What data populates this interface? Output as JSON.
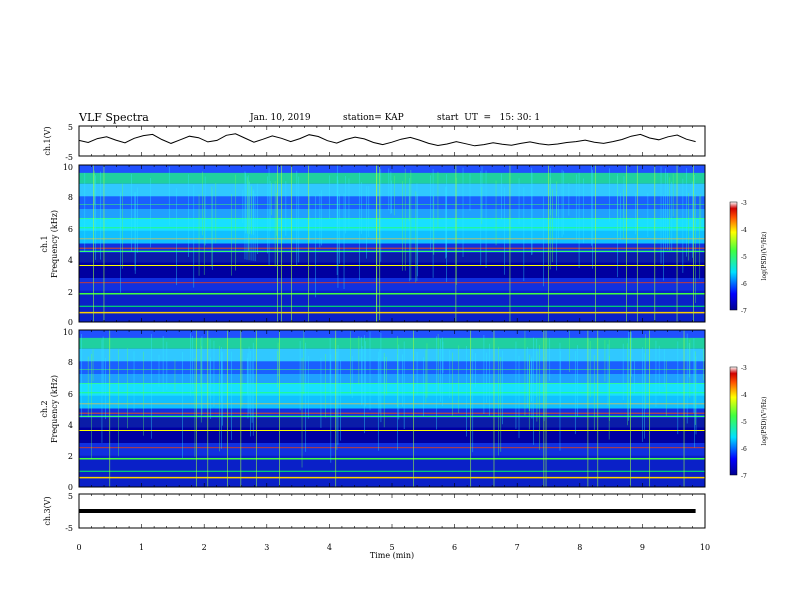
{
  "header": {
    "title": "VLF Spectra",
    "date": "Jan. 10, 2019",
    "station": "station= KAP",
    "start": "start  UT  =   15: 30: 1"
  },
  "chart_data": [
    {
      "type": "line",
      "ylabel": "ch.1(V)",
      "ylim": [
        -5,
        5
      ],
      "yticks": [
        "5",
        "-5"
      ],
      "xlim": [
        0,
        10
      ],
      "series": [
        {
          "values": [
            0.2,
            -0.5,
            0.8,
            1.4,
            0.3,
            -0.6,
            0.9,
            1.8,
            2.2,
            0.5,
            -0.8,
            0.4,
            1.6,
            1.1,
            -0.3,
            0.2,
            1.9,
            2.4,
            1.0,
            -0.4,
            0.6,
            1.7,
            0.9,
            -0.2,
            0.8,
            2.1,
            1.5,
            0.1,
            -0.7,
            0.5,
            1.3,
            0.7,
            -0.5,
            -1.2,
            -0.4,
            0.6,
            1.2,
            0.3,
            -0.8,
            -1.5,
            -1.0,
            -0.2,
            -0.9,
            -1.6,
            -1.2,
            -0.6,
            -1.1,
            -1.4,
            -0.8,
            -0.3,
            -0.9,
            -1.3,
            -1.0,
            -0.5,
            -0.2,
            0.3,
            -0.4,
            -0.8,
            -0.2,
            0.5,
            1.6,
            2.2,
            1.0,
            0.4,
            1.4,
            2.0,
            0.6,
            -0.2
          ]
        }
      ]
    },
    {
      "type": "heatmap",
      "ylabel": "ch.1",
      "ylabel2": "Frequency (kHz)",
      "ylim": [
        0,
        10
      ],
      "yticks": [
        "0",
        "2",
        "4",
        "6",
        "8",
        "10"
      ],
      "xlim": [
        0,
        10
      ],
      "colorbar": {
        "label": "log(PSD)(V²/Hz)",
        "ticks": [
          "-3",
          "-4",
          "-5",
          "-6",
          "-7"
        ]
      }
    },
    {
      "type": "heatmap",
      "ylabel": "ch.2",
      "ylabel2": "Frequency (kHz)",
      "ylim": [
        0,
        10
      ],
      "yticks": [
        "0",
        "2",
        "4",
        "6",
        "8",
        "10"
      ],
      "xlim": [
        0,
        10
      ],
      "colorbar": {
        "label": "log(PSD)(V²/Hz)",
        "ticks": [
          "-3",
          "-4",
          "-5",
          "-6",
          "-7"
        ]
      }
    },
    {
      "type": "line",
      "ylabel": "ch.3(V)",
      "ylim": [
        -5,
        5
      ],
      "yticks": [
        "5",
        "-5"
      ],
      "xlim": [
        0,
        10
      ],
      "xlabel": "Time (min)",
      "xticks": [
        "0",
        "1",
        "2",
        "3",
        "4",
        "5",
        "6",
        "7",
        "8",
        "9",
        "10"
      ],
      "series": [
        {
          "values": [
            0,
            0
          ]
        }
      ]
    }
  ]
}
